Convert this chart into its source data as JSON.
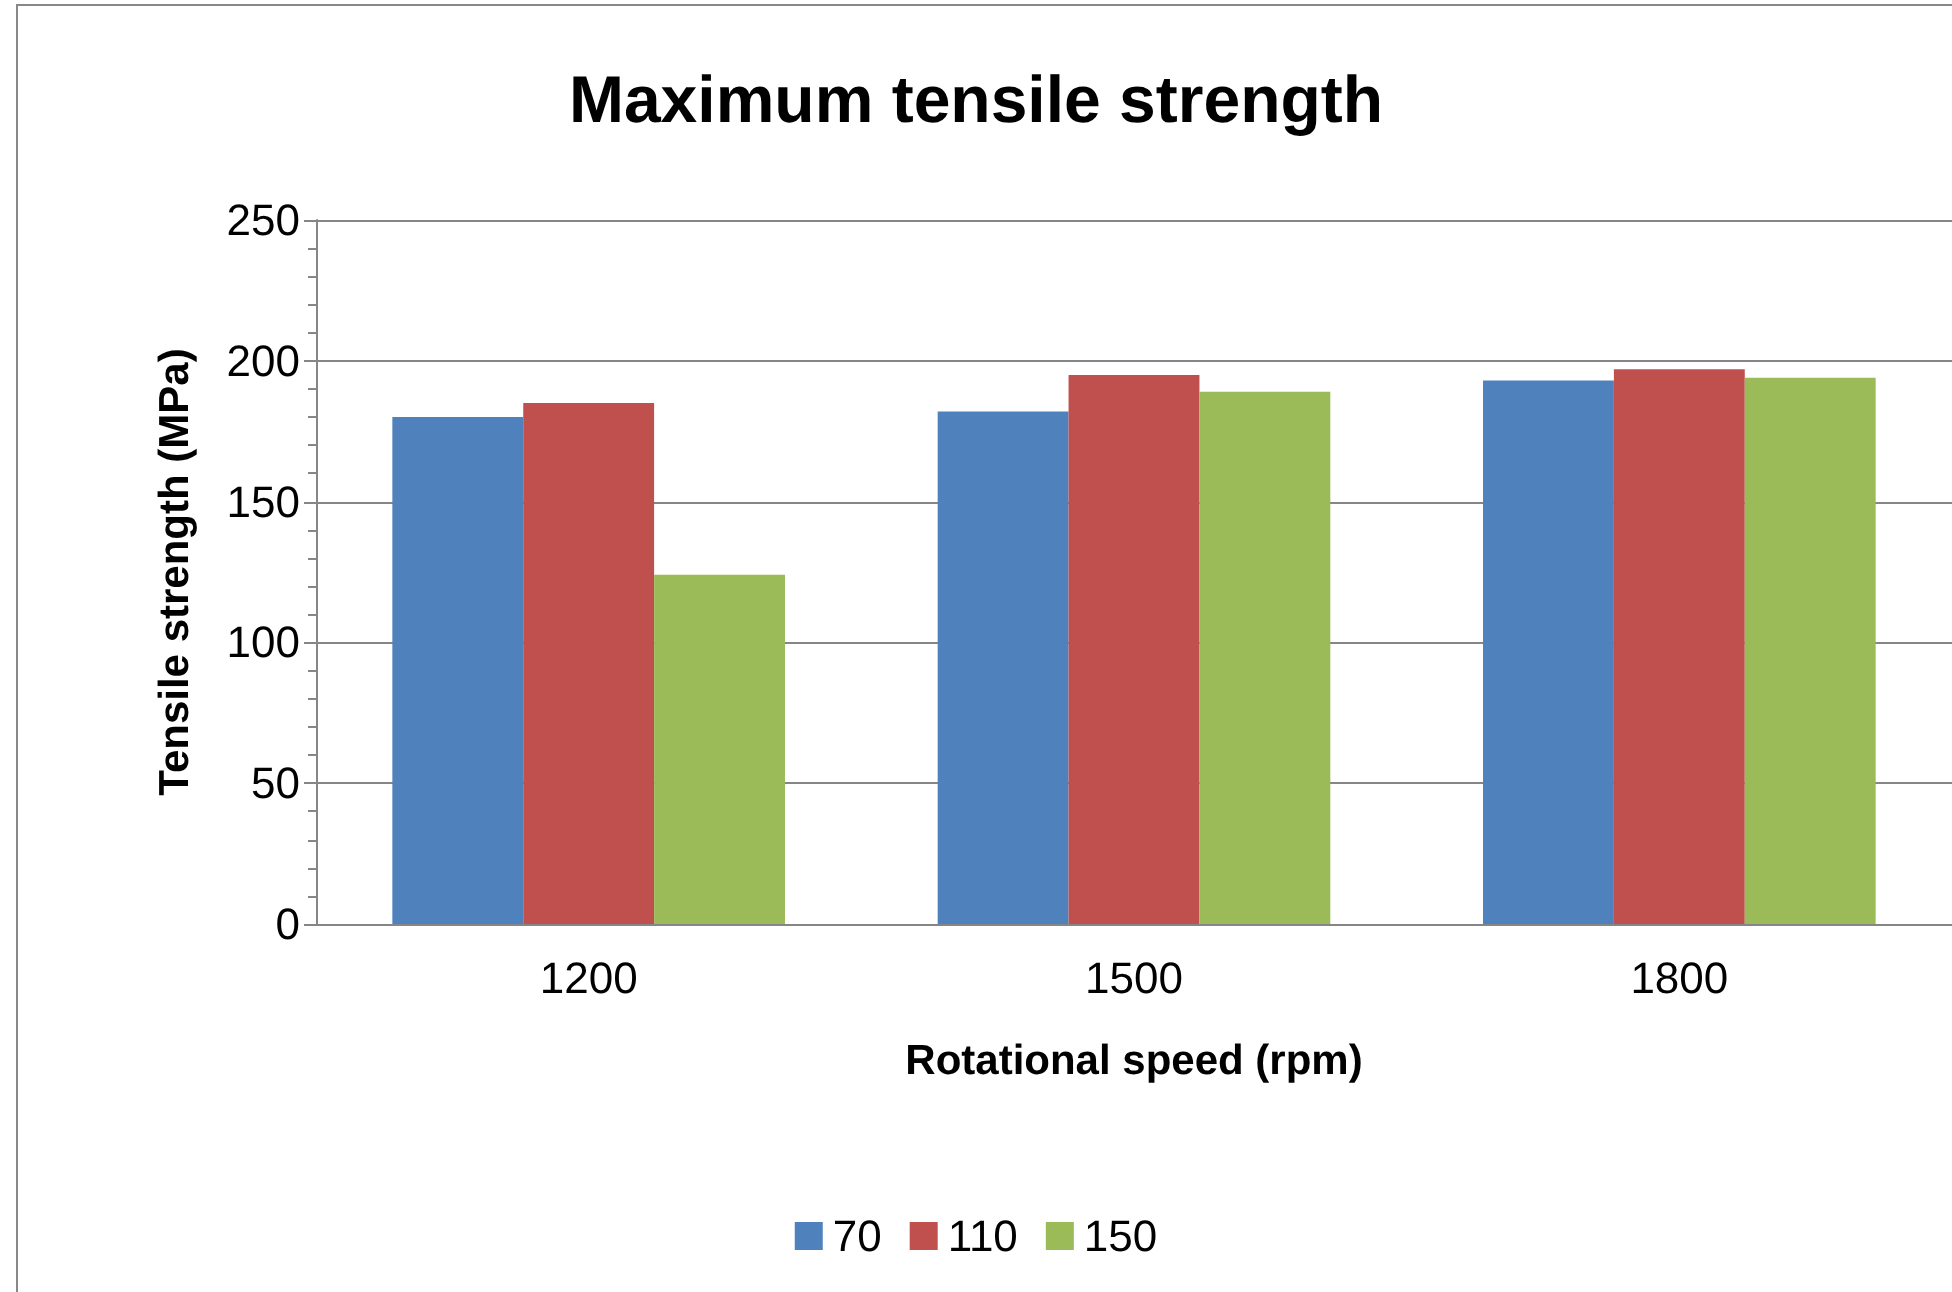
{
  "chart_data": {
    "type": "bar",
    "title": "Maximum tensile strength",
    "xlabel": "Rotational speed (rpm)",
    "ylabel": "Tensile strength (MPa)",
    "categories": [
      "1200",
      "1500",
      "1800"
    ],
    "series": [
      {
        "name": "70",
        "color": "#4f81bd",
        "values": [
          180,
          182,
          193
        ]
      },
      {
        "name": "110",
        "color": "#c0504d",
        "values": [
          185,
          195,
          197
        ]
      },
      {
        "name": "150",
        "color": "#9bbb59",
        "values": [
          124,
          189,
          194
        ]
      }
    ],
    "ylim": [
      0,
      250
    ],
    "yticks": [
      0,
      50,
      100,
      150,
      200,
      250
    ],
    "grid": "y",
    "legend": "bottom"
  }
}
